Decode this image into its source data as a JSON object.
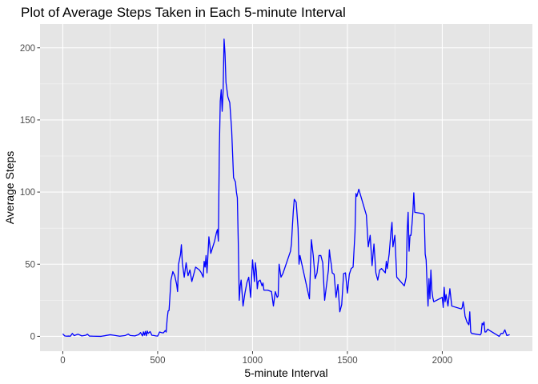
{
  "chart_data": {
    "type": "line",
    "title": "Plot of Average Steps Taken in Each 5-minute Interval",
    "xlabel": "5-minute Interval",
    "ylabel": "Average Steps",
    "xlim": [
      -120,
      2475
    ],
    "ylim": [
      -10.3,
      216.5
    ],
    "xticks": [
      0,
      500,
      1000,
      1500,
      2000
    ],
    "yticks": [
      0,
      50,
      100,
      150,
      200
    ],
    "grid": true,
    "legend": "none",
    "colors": {
      "panel": "#e5e5e5",
      "grid": "#ffffff",
      "line": "#0000ff",
      "tick": "#333333"
    },
    "series": [
      {
        "x": [
          0,
          10,
          20,
          30,
          40,
          50,
          60,
          80,
          100,
          120,
          130,
          140,
          160,
          200,
          220,
          250,
          270,
          300,
          330,
          345,
          355,
          380,
          400,
          410,
          420,
          425,
          430,
          435,
          440,
          445,
          450,
          460,
          470,
          480,
          490,
          500,
          505,
          510,
          520,
          530,
          540,
          545,
          550,
          555,
          560,
          570,
          580,
          590,
          600,
          605,
          610,
          620,
          625,
          630,
          640,
          650,
          660,
          670,
          680,
          700,
          720,
          730,
          740,
          745,
          750,
          755,
          760,
          770,
          780,
          800,
          810,
          815,
          820,
          825,
          830,
          835,
          840,
          845,
          850,
          855,
          860,
          870,
          880,
          890,
          900,
          910,
          915,
          920,
          925,
          930,
          935,
          940,
          950,
          960,
          970,
          980,
          990,
          1000,
          1010,
          1015,
          1020,
          1025,
          1030,
          1040,
          1050,
          1055,
          1060,
          1070,
          1080,
          1100,
          1110,
          1120,
          1130,
          1135,
          1140,
          1150,
          1160,
          1200,
          1205,
          1210,
          1215,
          1220,
          1230,
          1240,
          1245,
          1250,
          1300,
          1310,
          1320,
          1330,
          1340,
          1350,
          1360,
          1370,
          1380,
          1400,
          1405,
          1410,
          1415,
          1420,
          1430,
          1440,
          1450,
          1460,
          1470,
          1480,
          1490,
          1500,
          1510,
          1520,
          1530,
          1540,
          1545,
          1550,
          1560,
          1600,
          1610,
          1620,
          1630,
          1640,
          1650,
          1660,
          1670,
          1680,
          1700,
          1705,
          1710,
          1720,
          1730,
          1735,
          1740,
          1750,
          1760,
          1800,
          1805,
          1810,
          1815,
          1820,
          1825,
          1830,
          1835,
          1840,
          1845,
          1850,
          1855,
          1900,
          1905,
          1910,
          1915,
          1920,
          1925,
          1930,
          1935,
          1940,
          1945,
          1950,
          1955,
          2000,
          2005,
          2010,
          2015,
          2020,
          2030,
          2040,
          2050,
          2100,
          2105,
          2110,
          2115,
          2120,
          2130,
          2140,
          2145,
          2150,
          2155,
          2200,
          2205,
          2210,
          2215,
          2220,
          2225,
          2230,
          2240,
          2250,
          2300,
          2310,
          2320,
          2330,
          2340,
          2350,
          2355
        ],
        "y": [
          1.7,
          0.3,
          0.1,
          0.2,
          0.1,
          2.0,
          0.5,
          1.5,
          0.3,
          0.7,
          1.5,
          0.2,
          0.1,
          0.0,
          0.4,
          1.1,
          0.7,
          0.1,
          0.6,
          1.6,
          0.6,
          0.3,
          1.2,
          2.6,
          0.3,
          3.1,
          0.8,
          3.4,
          0.4,
          3.7,
          2.0,
          3.3,
          0.7,
          0.6,
          0.3,
          0.2,
          1.5,
          3.0,
          2.6,
          2.4,
          4.0,
          3.0,
          12.0,
          17.5,
          18.0,
          39.0,
          44.9,
          42.0,
          36.0,
          31.0,
          49.9,
          56.5,
          63.5,
          51.0,
          41.0,
          51.0,
          42.0,
          46.0,
          38.0,
          48.0,
          46.0,
          44.0,
          41.0,
          52.0,
          48.0,
          56.0,
          44.0,
          69.0,
          57.5,
          66.0,
          72.0,
          74.0,
          66.0,
          129.0,
          163.0,
          171.0,
          156.0,
          170.0,
          206.0,
          196.0,
          176.0,
          166.0,
          162.0,
          143.0,
          110.0,
          107.0,
          100.0,
          96.0,
          64.0,
          25.0,
          35.0,
          39.0,
          21.0,
          30.0,
          37.0,
          41.0,
          27.0,
          53.0,
          38.0,
          51.0,
          45.0,
          33.0,
          38.0,
          39.0,
          35.0,
          37.0,
          32.0,
          32.0,
          32.0,
          31.0,
          21.0,
          31.0,
          27.0,
          28.0,
          50.0,
          41.0,
          43.5,
          59.0,
          64.0,
          76.0,
          87.0,
          95.0,
          93.0,
          75.0,
          50.0,
          56.0,
          26.0,
          67.0,
          56.0,
          40.0,
          44.0,
          56.0,
          56.0,
          51.0,
          25.0,
          46.0,
          60.0,
          54.0,
          50.0,
          44.0,
          43.0,
          27.0,
          36.0,
          17.0,
          22.0,
          43.5,
          44.0,
          30.0,
          43.0,
          47.0,
          48.0,
          72.0,
          99.0,
          97.0,
          102.0,
          84.0,
          62.0,
          70.0,
          49.0,
          64.0,
          44.0,
          39.0,
          46.0,
          47.0,
          44.0,
          52.0,
          47.0,
          57.0,
          73.0,
          79.0,
          62.0,
          70.0,
          41.0,
          35.0,
          38.0,
          41.0,
          73.0,
          86.0,
          59.0,
          70.0,
          70.0,
          77.0,
          86.0,
          99.5,
          86.0,
          85.0,
          84.0,
          57.0,
          53.0,
          36.0,
          21.0,
          40.0,
          26.0,
          46.0,
          32.0,
          27.0,
          24.0,
          27.0,
          20.0,
          34.0,
          24.0,
          29.0,
          21.0,
          33.0,
          21.0,
          19.0,
          20.0,
          24.0,
          20.0,
          14.0,
          10.0,
          8.0,
          17.0,
          3.0,
          2.0,
          1.0,
          2.0,
          9.0,
          8.0,
          10.0,
          3.0,
          3.0,
          5.0,
          4.0,
          0.0,
          2.0,
          2.0,
          4.5,
          0.6,
          0.9,
          1.2
        ],
        "color": "#0000ff"
      }
    ]
  }
}
